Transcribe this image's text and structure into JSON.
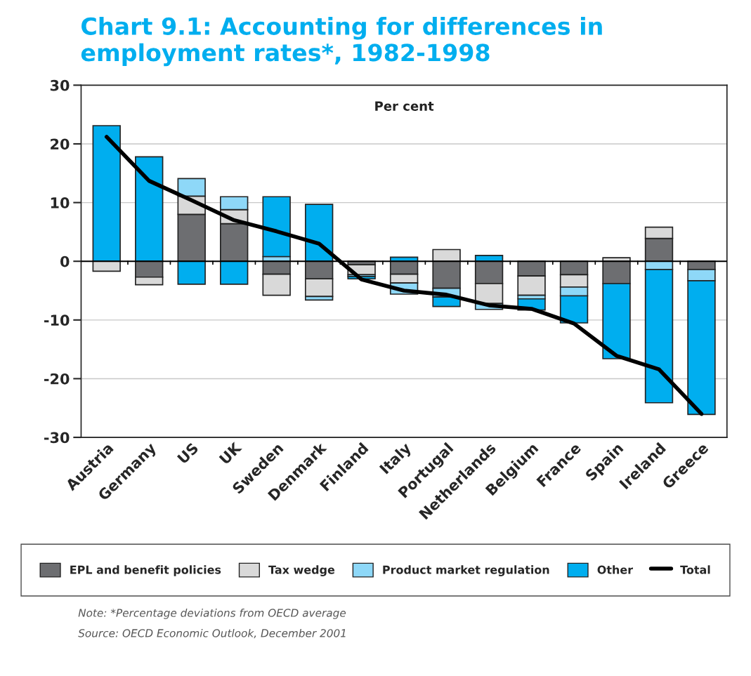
{
  "chart_data": {
    "type": "bar",
    "title": "Chart 9.1: Accounting for differences in employment rates*, 1982-1998",
    "ylabel": "Per cent",
    "categories": [
      "Austria",
      "Germany",
      "US",
      "UK",
      "Sweden",
      "Denmark",
      "Finland",
      "Italy",
      "Portugal",
      "Netherlands",
      "Belgium",
      "France",
      "Spain",
      "Ireland",
      "Greece"
    ],
    "stacked": true,
    "series": [
      {
        "name": "EPL and benefit policies",
        "color": "#6d6e71",
        "values": [
          0,
          -2.7,
          8.0,
          6.4,
          -2.2,
          -3.0,
          -0.6,
          -2.2,
          -4.6,
          -3.8,
          -2.5,
          -2.3,
          -3.8,
          3.9,
          -1.4
        ]
      },
      {
        "name": "Tax wedge",
        "color": "#d9d9d9",
        "values": [
          -1.7,
          -1.3,
          3.1,
          2.4,
          -3.6,
          -3.0,
          -1.7,
          -1.5,
          2.0,
          -3.4,
          -3.3,
          -2.1,
          0.6,
          1.9,
          0
        ]
      },
      {
        "name": "Product market regulation",
        "color": "#8ed8f8",
        "values": [
          0,
          0,
          3.0,
          2.2,
          0.8,
          -0.6,
          -0.3,
          -1.9,
          -1.5,
          -1.0,
          -0.6,
          -1.5,
          0,
          -1.4,
          -1.9
        ]
      },
      {
        "name": "Other",
        "color": "#00aeef",
        "values": [
          23.1,
          17.8,
          -3.9,
          -3.9,
          10.2,
          9.7,
          -0.4,
          0.7,
          -1.6,
          1.0,
          -1.9,
          -4.6,
          -12.8,
          -22.7,
          -22.8
        ]
      },
      {
        "name": "Total",
        "type": "line",
        "color": "#000000",
        "values": [
          21.2,
          13.7,
          10.4,
          7.0,
          5.1,
          3.0,
          -3.1,
          -5.0,
          -5.7,
          -7.5,
          -8.1,
          -10.6,
          -16.1,
          -18.4,
          -26.0
        ]
      }
    ],
    "ylim": [
      -30,
      30
    ],
    "yticks": [
      -30,
      -20,
      -10,
      0,
      10,
      20,
      30
    ],
    "grid": "y",
    "legend": "bottom",
    "ref_lines": [
      {
        "axis": "y",
        "value": 0,
        "color": "#000000"
      }
    ],
    "annotations": [
      "Note: *Percentage deviations from OECD average",
      "Source: OECD Economic Outlook, December 2001"
    ]
  }
}
